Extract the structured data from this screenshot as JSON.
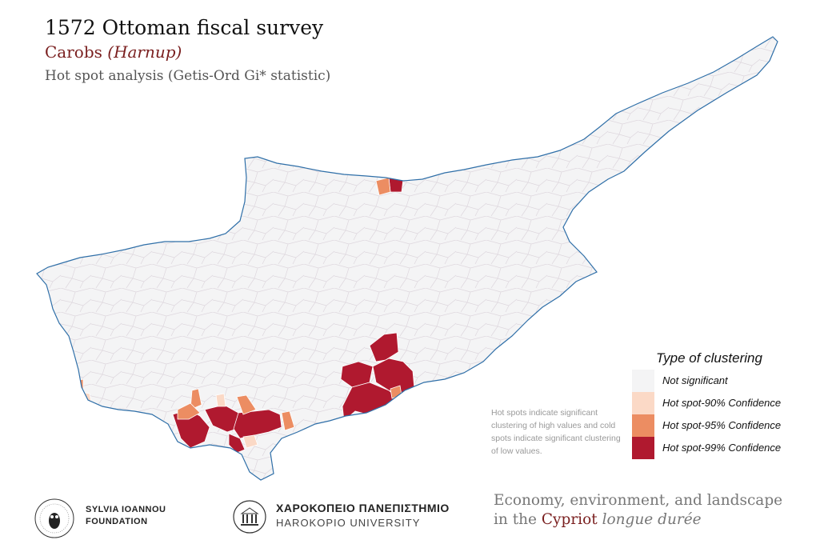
{
  "header": {
    "title": "1572 Ottoman fiscal survey",
    "subtitle_main": "Carobs ",
    "subtitle_italic": "(Harnup)",
    "analysis": "Hot spot analysis (Getis-Ord Gi* statistic)"
  },
  "map": {
    "region": "Cyprus",
    "land_fill": "#f4f4f5",
    "coast_color": "#2f6fa8",
    "cell_border_color": "#d9d4da"
  },
  "legend": {
    "title": "Type of clustering",
    "items": [
      {
        "label": "Not significant",
        "color": "#f4f4f5"
      },
      {
        "label": "Hot spot-90% Confidence",
        "color": "#fbd9c6"
      },
      {
        "label": "Hot spot-95% Confidence",
        "color": "#ec8d62"
      },
      {
        "label": "Hot spot-99% Confidence",
        "color": "#b0192f"
      }
    ]
  },
  "note": "Hot spots indicate significant clustering of high values and cold spots indicate significant clustering of low values.",
  "footer": {
    "foundation_line1": "SYLVIA IOANNOU",
    "foundation_line2": "FOUNDATION",
    "university_greek": "ΧΑΡΟΚΟΠΕΙΟ ΠΑΝΕΠΙΣΤΗΜΙΟ",
    "university_latin": "HAROKOPIO UNIVERSITY",
    "project_line1": "Economy, environment, and landscape",
    "project_line2_a": "in the ",
    "project_line2_b": "Cypriot",
    "project_line2_c": " longue durée"
  }
}
